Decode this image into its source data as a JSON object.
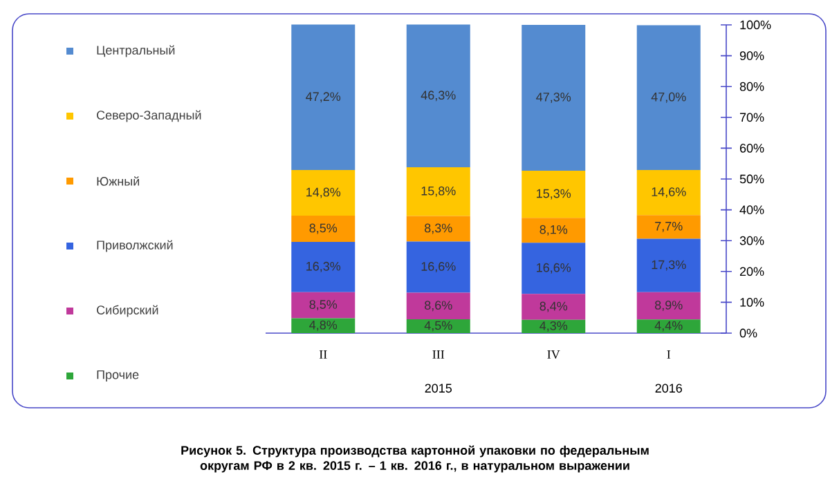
{
  "chart_data": {
    "type": "bar",
    "stacked": true,
    "title": "Рисунок 5. Структура производства картонной упаковки по федеральным округам РФ в 2 кв. 2015 г. – 1 кв. 2016 г., в натуральном выражении",
    "categories": [
      "II",
      "III",
      "IV",
      "I"
    ],
    "series": [
      {
        "name": "Прочие",
        "color": "#2ea63a",
        "values": [
          4.8,
          4.5,
          4.3,
          4.4
        ],
        "value_labels": [
          "4,8%",
          "4,5%",
          "4,3%",
          "4,4%"
        ]
      },
      {
        "name": "Сибирский",
        "color": "#c0399b",
        "values": [
          8.5,
          8.6,
          8.4,
          8.9
        ],
        "value_labels": [
          "8,5%",
          "8,6%",
          "8,4%",
          "8,9%"
        ]
      },
      {
        "name": "Приволжский",
        "color": "#3564e0",
        "values": [
          16.3,
          16.6,
          16.6,
          17.3
        ],
        "value_labels": [
          "16,3%",
          "16,6%",
          "16,6%",
          "17,3%"
        ]
      },
      {
        "name": "Южный",
        "color": "#ff9a00",
        "values": [
          8.5,
          8.3,
          8.1,
          7.7
        ],
        "value_labels": [
          "8,5%",
          "8,3%",
          "8,1%",
          "7,7%"
        ]
      },
      {
        "name": "Северо-Западный",
        "color": "#ffc600",
        "values": [
          14.8,
          15.8,
          15.3,
          14.6
        ],
        "value_labels": [
          "14,8%",
          "15,8%",
          "15,3%",
          "14,6%"
        ]
      },
      {
        "name": "Центральный",
        "color": "#548bd0",
        "values": [
          47.2,
          46.3,
          47.3,
          47.0
        ],
        "value_labels": [
          "47,2%",
          "46,3%",
          "47,3%",
          "47,0%"
        ]
      }
    ],
    "ylim": [
      0,
      100
    ],
    "yticks": [
      {
        "value": 0,
        "label": "0%"
      },
      {
        "value": 10,
        "label": "10%"
      },
      {
        "value": 20,
        "label": "20%"
      },
      {
        "value": 30,
        "label": "30%"
      },
      {
        "value": 40,
        "label": "40%"
      },
      {
        "value": 50,
        "label": "50%"
      },
      {
        "value": 60,
        "label": "60%"
      },
      {
        "value": 70,
        "label": "70%"
      },
      {
        "value": 80,
        "label": "80%"
      },
      {
        "value": 90,
        "label": "90%"
      },
      {
        "value": 100,
        "label": "100%"
      }
    ],
    "annotations": [
      "2015",
      "2016"
    ],
    "legend": "left"
  }
}
